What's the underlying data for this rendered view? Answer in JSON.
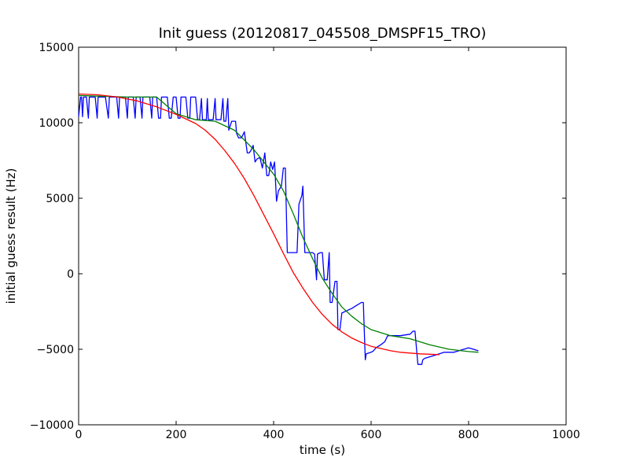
{
  "chart_data": {
    "type": "line",
    "title": "Init guess (20120817_045508_DMSPF15_TRO)",
    "xlabel": "time (s)",
    "ylabel": "initial guess result (Hz)",
    "xlim": [
      0,
      1000
    ],
    "ylim": [
      -10000,
      15000
    ],
    "x_ticks": [
      0,
      200,
      400,
      600,
      800,
      1000
    ],
    "y_ticks": [
      -10000,
      -5000,
      0,
      5000,
      10000,
      15000
    ],
    "grid": false,
    "legend": "none",
    "series": [
      {
        "color": "#0000ff",
        "points": [
          [
            0,
            10400
          ],
          [
            4,
            11700
          ],
          [
            6,
            11700
          ],
          [
            8,
            10400
          ],
          [
            10,
            11700
          ],
          [
            16,
            11700
          ],
          [
            20,
            10300
          ],
          [
            22,
            11700
          ],
          [
            34,
            11700
          ],
          [
            38,
            10300
          ],
          [
            40,
            11700
          ],
          [
            55,
            11700
          ],
          [
            61,
            10300
          ],
          [
            63,
            11700
          ],
          [
            78,
            11700
          ],
          [
            82,
            10300
          ],
          [
            84,
            11700
          ],
          [
            96,
            11700
          ],
          [
            100,
            10300
          ],
          [
            102,
            11700
          ],
          [
            112,
            11700
          ],
          [
            116,
            10300
          ],
          [
            118,
            11700
          ],
          [
            126,
            11700
          ],
          [
            130,
            10300
          ],
          [
            132,
            11700
          ],
          [
            146,
            11700
          ],
          [
            150,
            10300
          ],
          [
            152,
            11700
          ],
          [
            160,
            11700
          ],
          [
            164,
            10300
          ],
          [
            168,
            10300
          ],
          [
            170,
            11700
          ],
          [
            182,
            11700
          ],
          [
            186,
            10300
          ],
          [
            190,
            10300
          ],
          [
            194,
            11700
          ],
          [
            200,
            11700
          ],
          [
            204,
            10300
          ],
          [
            208,
            10300
          ],
          [
            210,
            11700
          ],
          [
            220,
            11700
          ],
          [
            224,
            10300
          ],
          [
            228,
            10300
          ],
          [
            230,
            11700
          ],
          [
            240,
            11700
          ],
          [
            244,
            10200
          ],
          [
            248,
            10200
          ],
          [
            252,
            11600
          ],
          [
            254,
            10200
          ],
          [
            262,
            10200
          ],
          [
            264,
            11600
          ],
          [
            266,
            10200
          ],
          [
            276,
            10200
          ],
          [
            280,
            11600
          ],
          [
            282,
            10200
          ],
          [
            292,
            10200
          ],
          [
            296,
            11600
          ],
          [
            298,
            10100
          ],
          [
            302,
            10100
          ],
          [
            306,
            11600
          ],
          [
            308,
            9500
          ],
          [
            314,
            10100
          ],
          [
            322,
            10100
          ],
          [
            324,
            9300
          ],
          [
            328,
            9000
          ],
          [
            334,
            9000
          ],
          [
            340,
            9400
          ],
          [
            346,
            8000
          ],
          [
            350,
            8000
          ],
          [
            354,
            8200
          ],
          [
            358,
            8500
          ],
          [
            362,
            7400
          ],
          [
            366,
            7600
          ],
          [
            372,
            7700
          ],
          [
            377,
            7000
          ],
          [
            382,
            8000
          ],
          [
            386,
            6500
          ],
          [
            390,
            6500
          ],
          [
            394,
            7400
          ],
          [
            398,
            6900
          ],
          [
            402,
            7400
          ],
          [
            406,
            4800
          ],
          [
            410,
            5500
          ],
          [
            416,
            5800
          ],
          [
            420,
            7000
          ],
          [
            424,
            7000
          ],
          [
            428,
            1400
          ],
          [
            434,
            1400
          ],
          [
            448,
            1400
          ],
          [
            452,
            4600
          ],
          [
            458,
            5200
          ],
          [
            460,
            5800
          ],
          [
            464,
            1400
          ],
          [
            468,
            1400
          ],
          [
            476,
            1400
          ],
          [
            480,
            1400
          ],
          [
            484,
            1300
          ],
          [
            488,
            -400
          ],
          [
            490,
            1300
          ],
          [
            496,
            1400
          ],
          [
            500,
            1400
          ],
          [
            504,
            -400
          ],
          [
            510,
            -400
          ],
          [
            514,
            1400
          ],
          [
            516,
            -1900
          ],
          [
            520,
            -1900
          ],
          [
            526,
            -500
          ],
          [
            530,
            -500
          ],
          [
            532,
            -3700
          ],
          [
            536,
            -3700
          ],
          [
            540,
            -2600
          ],
          [
            560,
            -2300
          ],
          [
            570,
            -2100
          ],
          [
            580,
            -1900
          ],
          [
            584,
            -1900
          ],
          [
            588,
            -5700
          ],
          [
            590,
            -5300
          ],
          [
            600,
            -5200
          ],
          [
            605,
            -5100
          ],
          [
            610,
            -4900
          ],
          [
            620,
            -4700
          ],
          [
            628,
            -4500
          ],
          [
            634,
            -4100
          ],
          [
            660,
            -4100
          ],
          [
            680,
            -4000
          ],
          [
            686,
            -3800
          ],
          [
            690,
            -3800
          ],
          [
            696,
            -6000
          ],
          [
            700,
            -6000
          ],
          [
            704,
            -6000
          ],
          [
            706,
            -5700
          ],
          [
            710,
            -5600
          ],
          [
            720,
            -5500
          ],
          [
            730,
            -5400
          ],
          [
            740,
            -5300
          ],
          [
            750,
            -5200
          ],
          [
            760,
            -5200
          ],
          [
            770,
            -5200
          ],
          [
            780,
            -5100
          ],
          [
            790,
            -5000
          ],
          [
            800,
            -4900
          ],
          [
            810,
            -5000
          ],
          [
            820,
            -5100
          ]
        ]
      },
      {
        "color": "#008000",
        "points": [
          [
            0,
            11800
          ],
          [
            100,
            11700
          ],
          [
            160,
            11700
          ],
          [
            200,
            10600
          ],
          [
            240,
            10200
          ],
          [
            280,
            10100
          ],
          [
            320,
            9500
          ],
          [
            360,
            8200
          ],
          [
            400,
            6600
          ],
          [
            420,
            5500
          ],
          [
            440,
            4000
          ],
          [
            460,
            2400
          ],
          [
            480,
            1000
          ],
          [
            500,
            -300
          ],
          [
            520,
            -1300
          ],
          [
            540,
            -2200
          ],
          [
            560,
            -2800
          ],
          [
            580,
            -3300
          ],
          [
            600,
            -3700
          ],
          [
            640,
            -4100
          ],
          [
            680,
            -4300
          ],
          [
            720,
            -4700
          ],
          [
            760,
            -5000
          ],
          [
            800,
            -5150
          ],
          [
            820,
            -5200
          ]
        ]
      },
      {
        "color": "#ff0000",
        "points": [
          [
            0,
            11900
          ],
          [
            40,
            11850
          ],
          [
            80,
            11700
          ],
          [
            120,
            11450
          ],
          [
            160,
            11050
          ],
          [
            200,
            10550
          ],
          [
            240,
            9950
          ],
          [
            260,
            9500
          ],
          [
            280,
            8900
          ],
          [
            300,
            8150
          ],
          [
            320,
            7300
          ],
          [
            340,
            6300
          ],
          [
            360,
            5150
          ],
          [
            380,
            3900
          ],
          [
            400,
            2650
          ],
          [
            420,
            1350
          ],
          [
            440,
            100
          ],
          [
            460,
            -950
          ],
          [
            480,
            -1900
          ],
          [
            500,
            -2700
          ],
          [
            520,
            -3350
          ],
          [
            540,
            -3850
          ],
          [
            560,
            -4250
          ],
          [
            580,
            -4550
          ],
          [
            600,
            -4800
          ],
          [
            620,
            -4950
          ],
          [
            640,
            -5100
          ],
          [
            660,
            -5200
          ],
          [
            680,
            -5250
          ],
          [
            700,
            -5300
          ],
          [
            720,
            -5330
          ],
          [
            740,
            -5360
          ]
        ]
      }
    ]
  }
}
